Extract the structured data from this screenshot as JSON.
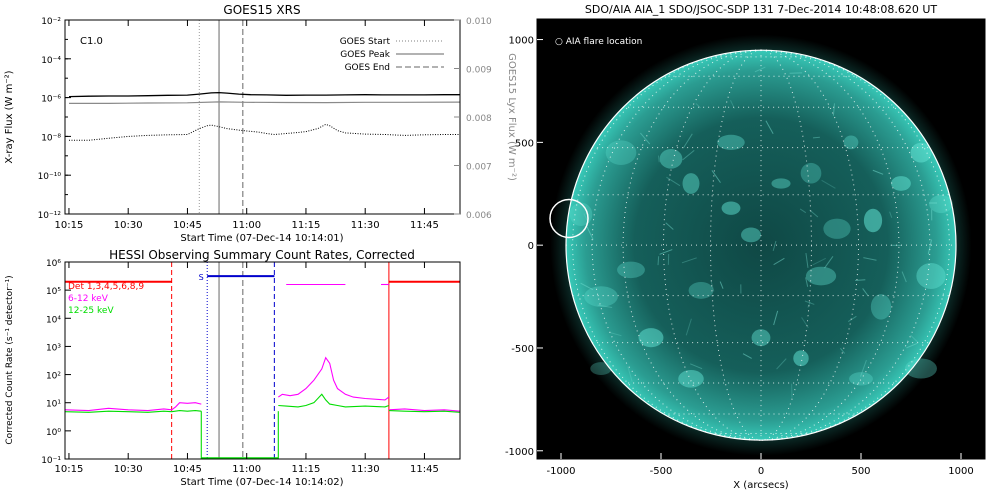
{
  "colors": {
    "background": "#ffffff",
    "axes": "#000000",
    "right_axis": "#888888",
    "goes_long": "#000000",
    "goes_short": "#000000",
    "goes_right": "#8a8a8a",
    "hessi_det": "#ff0000",
    "hessi_low": "#ff00ff",
    "hessi_mid": "#00dd00",
    "hessi_state": "#0000cc",
    "sun_disk": "#2fb8a8",
    "sun_bg": "#000000"
  },
  "chart_data": [
    {
      "type": "line",
      "title": "GOES15 XRS",
      "xlabel": "Start Time (07-Dec-14 10:14:01)",
      "ylabel": "X-ray Flux (W m⁻²)",
      "y2label": "GOES15 Lyx Flux (W m⁻²)",
      "x_unit": "minutes after 10:15",
      "xlim": [
        -1,
        99
      ],
      "xticks": [
        0,
        15,
        30,
        45,
        60,
        75,
        90
      ],
      "xtick_labels": [
        "10:15",
        "10:30",
        "10:45",
        "11:00",
        "11:15",
        "11:30",
        "11:45"
      ],
      "ylog": true,
      "ylim_exp": [
        -12,
        -2
      ],
      "yticks_exp": [
        -12,
        -10,
        -8,
        -6,
        -4,
        -2
      ],
      "ytick_labels": [
        "10⁻¹²",
        "10⁻¹⁰",
        "10⁻⁸",
        "10⁻⁶",
        "10⁻⁴",
        "10⁻²"
      ],
      "y2lim": [
        0.006,
        0.01
      ],
      "y2ticks": [
        "0.006",
        "0.007",
        "0.008",
        "0.009",
        "0.010"
      ],
      "annotation": "C1.0",
      "legend": [
        "GOES Start",
        "GOES Peak",
        "GOES End"
      ],
      "legend_position": "top-right",
      "vlines": {
        "start": 33,
        "peak": 38,
        "end": 44
      },
      "series": [
        {
          "name": "long",
          "x": [
            0,
            5,
            10,
            15,
            20,
            25,
            30,
            33,
            36,
            38,
            40,
            43,
            46,
            50,
            55,
            60,
            65,
            70,
            75,
            80,
            85,
            90,
            95,
            99
          ],
          "log_values": [
            -5.95,
            -5.93,
            -5.92,
            -5.92,
            -5.9,
            -5.88,
            -5.87,
            -5.82,
            -5.76,
            -5.74,
            -5.77,
            -5.82,
            -5.85,
            -5.86,
            -5.88,
            -5.87,
            -5.87,
            -5.86,
            -5.85,
            -5.86,
            -5.86,
            -5.86,
            -5.85,
            -5.85
          ]
        },
        {
          "name": "long_lyx",
          "x": [
            0,
            10,
            20,
            30,
            38,
            45,
            55,
            65,
            75,
            85,
            99
          ],
          "log_values": [
            -6.3,
            -6.3,
            -6.28,
            -6.27,
            -6.22,
            -6.24,
            -6.25,
            -6.26,
            -6.24,
            -6.24,
            -6.23
          ]
        },
        {
          "name": "short",
          "x": [
            0,
            5,
            10,
            15,
            20,
            25,
            30,
            33,
            35,
            36,
            38,
            40,
            42,
            45,
            48,
            50,
            52,
            55,
            58,
            60,
            63,
            65,
            66,
            68,
            70,
            75,
            80,
            85,
            90,
            95,
            99
          ],
          "log_values": [
            -8.2,
            -8.2,
            -8.1,
            -8.0,
            -7.95,
            -7.92,
            -7.9,
            -7.6,
            -7.45,
            -7.42,
            -7.5,
            -7.6,
            -7.65,
            -7.72,
            -7.78,
            -7.85,
            -7.9,
            -7.85,
            -7.8,
            -7.75,
            -7.6,
            -7.38,
            -7.45,
            -7.7,
            -7.82,
            -7.88,
            -7.9,
            -7.95,
            -7.92,
            -7.9,
            -7.9
          ]
        }
      ]
    },
    {
      "type": "line",
      "title": "HESSI Observing Summary Count Rates, Corrected",
      "xlabel": "Start Time (07-Dec-14 10:14:02)",
      "ylabel": "Corrected Count Rate (s⁻¹ detector⁻¹)",
      "x_unit": "minutes after 10:15",
      "xlim": [
        -1,
        99
      ],
      "xticks": [
        0,
        15,
        30,
        45,
        60,
        75,
        90
      ],
      "xtick_labels": [
        "10:15",
        "10:30",
        "10:45",
        "11:00",
        "11:15",
        "11:30",
        "11:45"
      ],
      "ylog": true,
      "ylim_exp": [
        -1,
        6
      ],
      "yticks_exp": [
        -1,
        0,
        1,
        2,
        3,
        4,
        5,
        6
      ],
      "ytick_labels": [
        "10⁻¹",
        "10⁰",
        "10¹",
        "10²",
        "10³",
        "10⁴",
        "10⁵",
        "10⁶"
      ],
      "legend": [
        "Det 1,3,4,5,6,8,9",
        "6-12 keV",
        "12-25 keV"
      ],
      "legend_position": "top-left",
      "state_label": "S",
      "vlines": {
        "det_dashed": 26,
        "blue_dotted": 35,
        "grey_peak": 38,
        "grey_dashed": 44,
        "blue_dashed": 52,
        "red_solid": 81
      },
      "series": [
        {
          "name": "Det 1,3,4,5,6,8,9",
          "segments": [
            {
              "x": [
                -1,
                26
              ],
              "log_values": [
                5.3,
                5.3
              ]
            },
            {
              "x": [
                81,
                99
              ],
              "log_values": [
                5.3,
                5.3
              ]
            }
          ]
        },
        {
          "name": "6-12 keV",
          "segments": [
            {
              "x": [
                -1,
                5,
                10,
                15,
                20,
                24,
                26,
                27,
                28,
                30,
                32,
                33.5
              ],
              "log_values": [
                0.75,
                0.72,
                0.8,
                0.75,
                0.72,
                0.78,
                0.75,
                0.85,
                1.0,
                0.98,
                1.0,
                0.95
              ]
            },
            {
              "x": [
                53,
                54,
                56,
                58,
                60,
                62,
                64,
                65,
                66,
                67,
                68,
                70,
                72,
                75,
                80,
                81
              ],
              "log_values": [
                1.2,
                1.3,
                1.25,
                1.3,
                1.5,
                1.8,
                2.2,
                2.6,
                2.4,
                1.8,
                1.5,
                1.3,
                1.2,
                1.15,
                1.1,
                1.2
              ]
            },
            {
              "x": [
                81,
                85,
                90,
                95,
                99
              ],
              "log_values": [
                0.75,
                0.78,
                0.72,
                0.75,
                0.7
              ]
            },
            {
              "x": [
                55,
                58,
                62,
                66,
                70
              ],
              "log_values": [
                5.2,
                5.2,
                5.2,
                5.2,
                5.2
              ]
            },
            {
              "x": [
                79,
                81
              ],
              "log_values": [
                5.2,
                5.2
              ]
            }
          ]
        },
        {
          "name": "12-25 keV",
          "segments": [
            {
              "x": [
                -1,
                5,
                10,
                15,
                20,
                24,
                26,
                28,
                30,
                32,
                33.5
              ],
              "log_values": [
                0.68,
                0.66,
                0.7,
                0.68,
                0.66,
                0.7,
                0.68,
                0.72,
                0.7,
                0.72,
                0.7
              ]
            },
            {
              "x": [
                53,
                55,
                58,
                60,
                62,
                64,
                65,
                66,
                68,
                70,
                75,
                80,
                81
              ],
              "log_values": [
                0.9,
                0.88,
                0.85,
                0.9,
                1.0,
                1.3,
                1.1,
                0.95,
                0.9,
                0.85,
                0.88,
                0.85,
                0.9
              ]
            },
            {
              "x": [
                81,
                85,
                90,
                95,
                99
              ],
              "log_values": [
                0.72,
                0.7,
                0.68,
                0.7,
                0.66
              ]
            }
          ]
        },
        {
          "name": "state",
          "segments": [
            {
              "x": [
                35,
                52
              ],
              "log_values": [
                5.5,
                5.5
              ]
            }
          ]
        }
      ]
    },
    {
      "type": "heatmap",
      "title": "SDO/AIA AIA_1 SDO/JSOC-SDP 131  7-Dec-2014 10:48:08.620 UT",
      "xlabel": "X (arcsecs)",
      "ylabel": "",
      "xlim": [
        -1120,
        1120
      ],
      "ylim": [
        -1040,
        1100
      ],
      "xticks": [
        -1000,
        -500,
        0,
        500,
        1000
      ],
      "yticks": [
        -1000,
        -500,
        0,
        500,
        1000
      ],
      "solar_radius": 975,
      "annotation": "○ AIA flare location",
      "flare_circle": {
        "x": -960,
        "y": 130,
        "r": 95
      },
      "grid": true
    }
  ]
}
